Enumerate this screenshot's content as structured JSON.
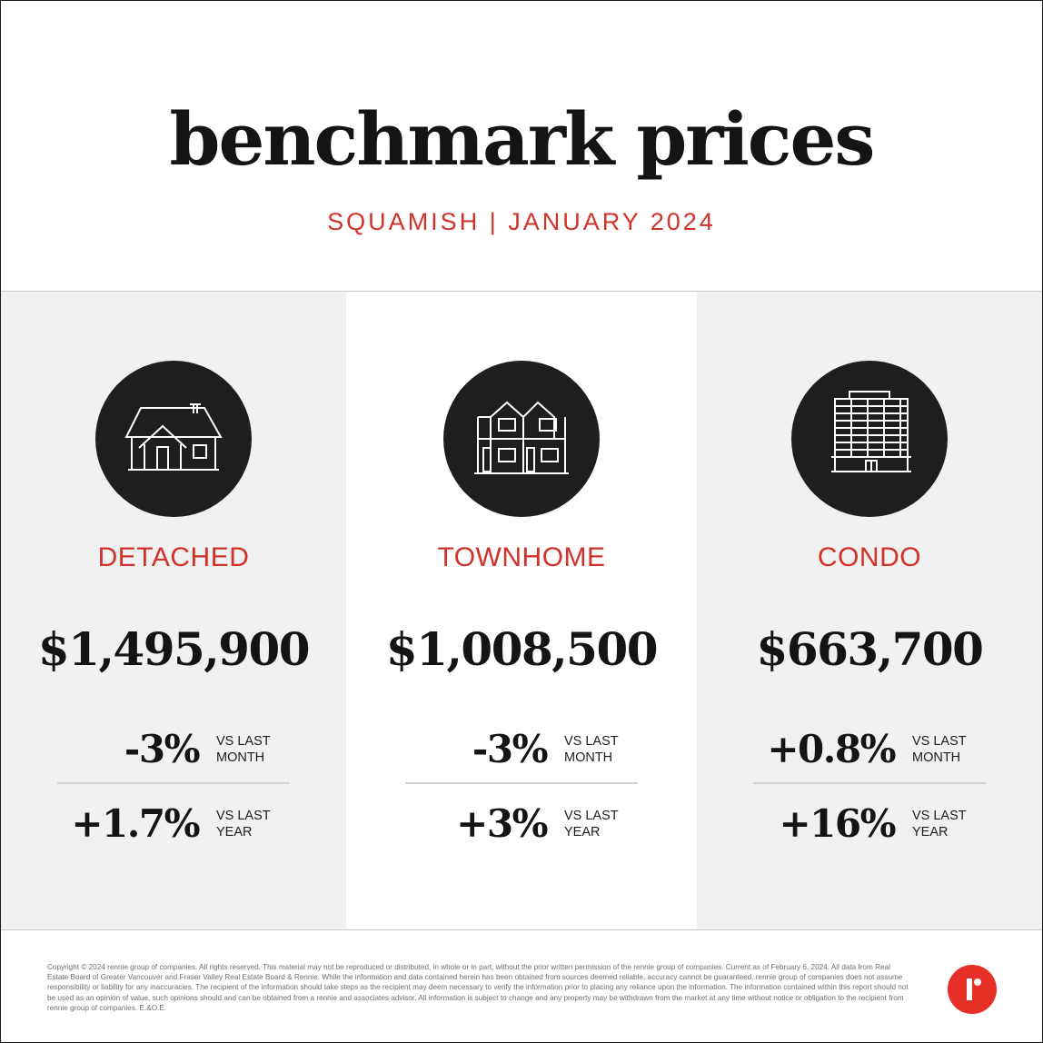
{
  "header": {
    "title": "benchmark prices",
    "subtitle": "SQUAMISH | JANUARY 2024"
  },
  "colors": {
    "accent": "#d1322a",
    "dark": "#1f1d1e",
    "panel_gray": "#f1f1f1",
    "logo_red": "#e63027"
  },
  "panels": [
    {
      "icon": "detached-house-icon",
      "type": "DETACHED",
      "price": "$1,495,900",
      "month_change": "-3%",
      "month_label": "VS LAST MONTH",
      "year_change": "+1.7%",
      "year_label": "VS LAST YEAR"
    },
    {
      "icon": "townhome-icon",
      "type": "TOWNHOME",
      "price": "$1,008,500",
      "month_change": "-3%",
      "month_label": "VS LAST MONTH",
      "year_change": "+3%",
      "year_label": "VS LAST YEAR"
    },
    {
      "icon": "condo-building-icon",
      "type": "CONDO",
      "price": "$663,700",
      "month_change": "+0.8%",
      "month_label": "VS LAST MONTH",
      "year_change": "+16%",
      "year_label": "VS LAST YEAR"
    }
  ],
  "footer": {
    "disclaimer": "Copyright © 2024 rennie group of companies. All rights reserved. This material may not be reproduced or distributed, in whole or in part, without the prior written permission of the rennie group of companies. Current as of February 6, 2024. All data from Real Estate Board of Greater Vancouver and Fraser Valley Real Estate Board & Rennie. While the information and data contained herein has been obtained from sources deemed reliable, accuracy cannot be guaranteed. rennie group of companies does not assume responsibility or liability for any inaccuracies. The recipient of the information should take steps as the recipient may deem necessary to verify the information prior to placing any reliance upon the information. The information contained within this report should not be used as an opinion of value, such opinions should and can be obtained from a rennie and associates advisor. All information is subject to change and any property may be withdrawn from the market at any time without notice or obligation to the recipient from rennie group of companies. E.&O.E.",
    "logo_icon": "rennie-logo-icon"
  }
}
